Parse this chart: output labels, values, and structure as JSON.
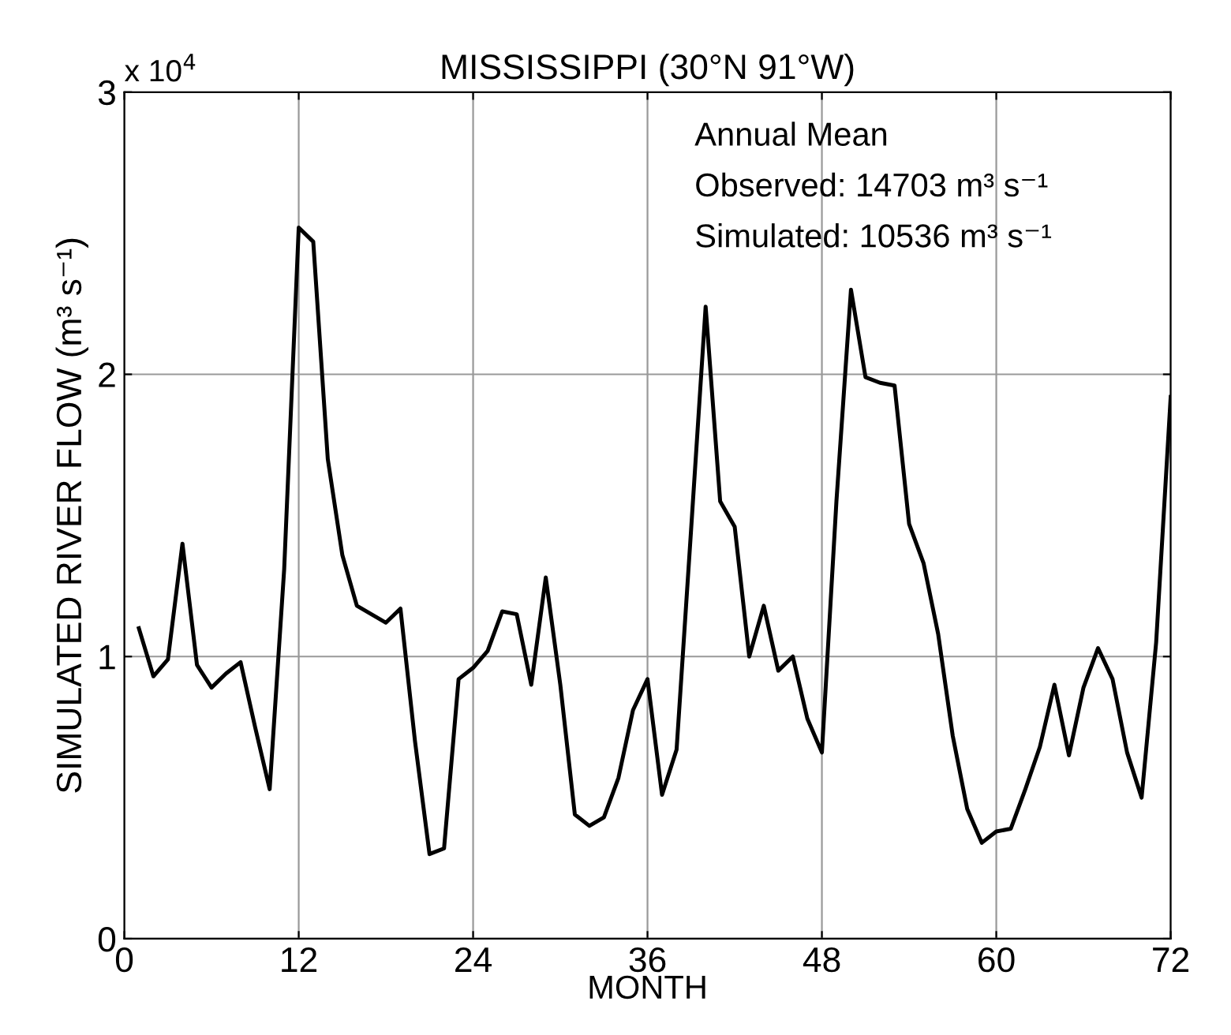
{
  "chart_data": {
    "type": "line",
    "title": "MISSISSIPPI (30°N 91°W)",
    "xlabel": "MONTH",
    "ylabel": "SIMULATED RIVER FLOW (m³ s⁻¹)",
    "x": [
      1,
      2,
      3,
      4,
      5,
      6,
      7,
      8,
      9,
      10,
      11,
      12,
      13,
      14,
      15,
      16,
      17,
      18,
      19,
      20,
      21,
      22,
      23,
      24,
      25,
      26,
      27,
      28,
      29,
      30,
      31,
      32,
      33,
      34,
      35,
      36,
      37,
      38,
      39,
      40,
      41,
      42,
      43,
      44,
      45,
      46,
      47,
      48,
      49,
      50,
      51,
      52,
      53,
      54,
      55,
      56,
      57,
      58,
      59,
      60,
      61,
      62,
      63,
      64,
      65,
      66,
      67,
      68,
      69,
      70,
      71,
      72
    ],
    "series": [
      {
        "color": "#000000",
        "values": [
          1.1,
          0.93,
          0.99,
          1.4,
          0.97,
          0.89,
          0.94,
          0.98,
          0.75,
          0.53,
          1.31,
          2.52,
          2.47,
          1.7,
          1.36,
          1.18,
          1.15,
          1.12,
          1.17,
          0.7,
          0.3,
          0.32,
          0.92,
          0.96,
          1.02,
          1.16,
          1.15,
          0.9,
          1.28,
          0.9,
          0.44,
          0.4,
          0.43,
          0.57,
          0.81,
          0.92,
          0.51,
          0.67,
          1.45,
          2.24,
          1.55,
          1.46,
          1.0,
          1.18,
          0.95,
          1.0,
          0.78,
          0.66,
          1.55,
          2.3,
          1.99,
          1.97,
          1.96,
          1.47,
          1.33,
          1.08,
          0.72,
          0.46,
          0.34,
          0.38,
          0.39,
          0.53,
          0.68,
          0.9,
          0.65,
          0.89,
          1.03,
          0.92,
          0.66,
          0.5,
          1.05,
          1.92
        ]
      }
    ],
    "xlim": [
      0,
      72
    ],
    "xticks": [
      0,
      12,
      24,
      36,
      48,
      60,
      72
    ],
    "ylim": [
      0,
      3
    ],
    "yticks": [
      0,
      1,
      2,
      3
    ],
    "grid": true,
    "line_style": "solid",
    "marker": "none",
    "annotations": [
      "x 10$^{4}$",
      "Annual Mean",
      "Observed: 14703 m³ s⁻¹",
      "Simulated: 10536 m³ s⁻¹"
    ]
  }
}
